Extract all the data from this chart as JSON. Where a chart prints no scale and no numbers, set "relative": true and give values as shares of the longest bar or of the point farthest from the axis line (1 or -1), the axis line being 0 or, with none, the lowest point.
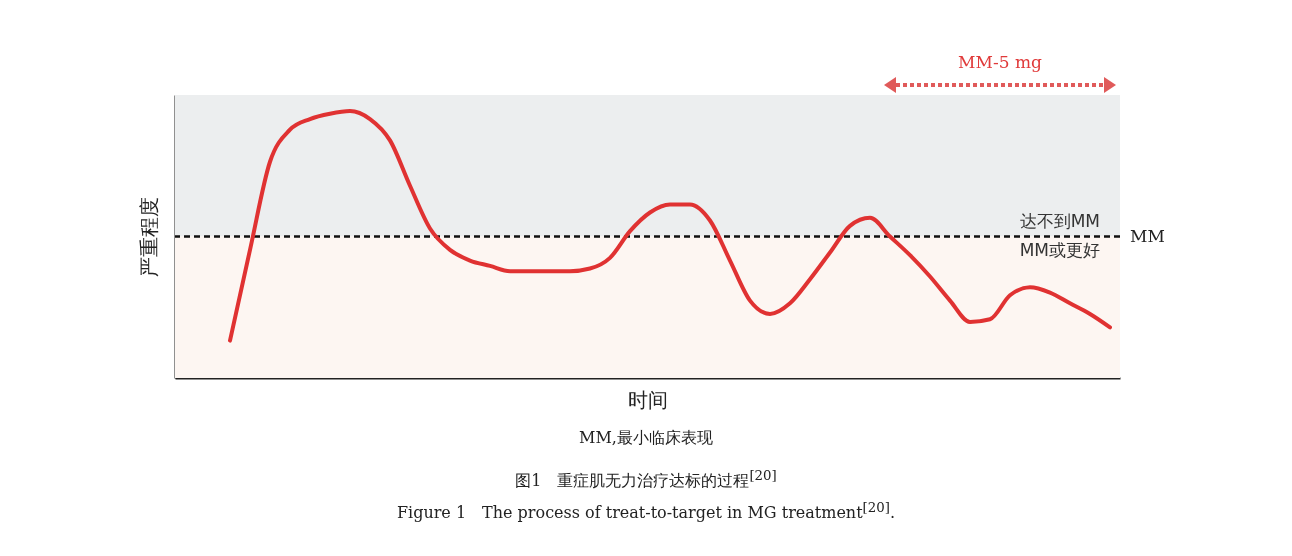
{
  "chart_data": {
    "type": "line",
    "relative": true,
    "xlabel": "时间",
    "ylabel": "严重程度",
    "categories": [
      null,
      null,
      null,
      null,
      null,
      null,
      null,
      null,
      null,
      null,
      null,
      null,
      null,
      null,
      null,
      null,
      null,
      null,
      null,
      null,
      null,
      null,
      null,
      null,
      null,
      null,
      null,
      null,
      null,
      null,
      null,
      null,
      null,
      null,
      null,
      null,
      null,
      null,
      null,
      null,
      null,
      null,
      null,
      null,
      null
    ],
    "series": [
      {
        "color": "#e03232",
        "values": [
          0.14,
          0.48,
          0.81,
          0.93,
          0.97,
          0.99,
          1,
          0.97,
          0.89,
          0.72,
          0.56,
          0.48,
          0.44,
          0.42,
          0.4,
          0.4,
          0.4,
          0.4,
          0.41,
          0.45,
          0.55,
          0.62,
          0.65,
          0.65,
          0.59,
          0.44,
          0.29,
          0.24,
          0.28,
          0.37,
          0.47,
          0.57,
          0.6,
          0.53,
          0.46,
          0.38,
          0.29,
          0.21,
          0.22,
          0.31,
          0.34,
          0.32,
          0.28,
          0.24,
          0.19
        ]
      }
    ],
    "ref_lines": [
      {
        "axis": "y",
        "value": 0.53,
        "label": "MM",
        "color": "#111111",
        "line_style": "dashed"
      }
    ],
    "bands": [
      {
        "axis": "y",
        "from": 0.53,
        "to": 1.06,
        "label": "达不到MM",
        "color": "#eceeef"
      },
      {
        "axis": "y",
        "from": 0,
        "to": 0.53,
        "label": "MM或更好",
        "color": "#fdf6f2"
      }
    ],
    "annotations": [
      "MM-5 mg",
      "MM,最小临床表现",
      "图1　重症肌无力治疗达标的过程$^{[20]}$",
      "Figure 1　The process of treat-to-target in MG treatment$^{[20]}$."
    ]
  }
}
